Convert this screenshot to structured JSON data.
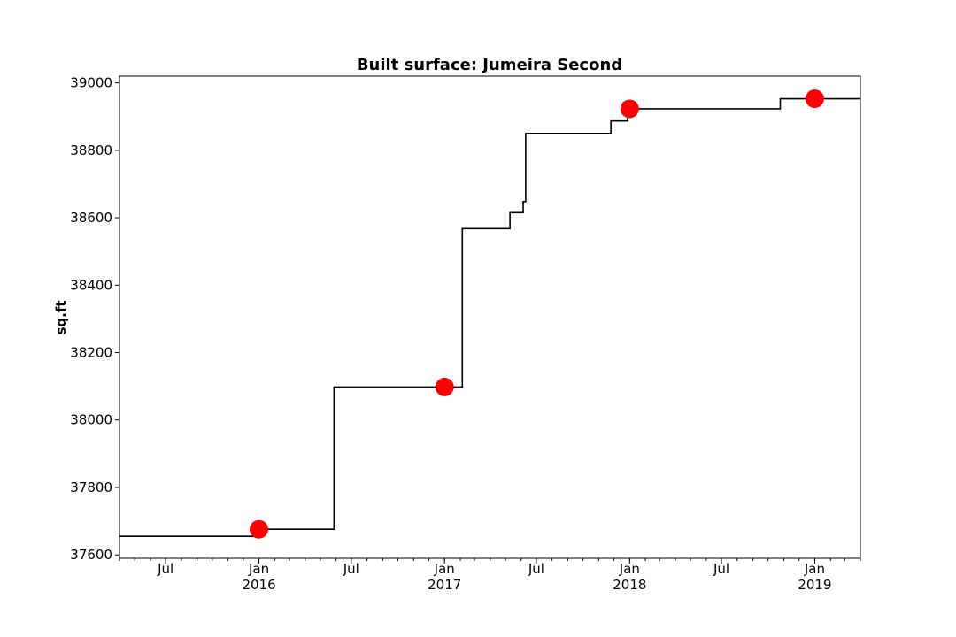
{
  "chart_data": {
    "type": "line",
    "title": "Built surface: Jumeira Second",
    "xlabel": "",
    "ylabel": "sq.ft",
    "x_range": [
      "2015-04-01",
      "2019-04-01"
    ],
    "ylim": [
      37590,
      39020
    ],
    "yticks": [
      37600,
      37800,
      38000,
      38200,
      38400,
      38600,
      38800,
      39000
    ],
    "xticks": [
      {
        "date": "2015-07-01",
        "label": "Jul",
        "sublabel": ""
      },
      {
        "date": "2016-01-01",
        "label": "Jan",
        "sublabel": "2016"
      },
      {
        "date": "2016-07-01",
        "label": "Jul",
        "sublabel": ""
      },
      {
        "date": "2017-01-01",
        "label": "Jan",
        "sublabel": "2017"
      },
      {
        "date": "2017-07-01",
        "label": "Jul",
        "sublabel": ""
      },
      {
        "date": "2018-01-01",
        "label": "Jan",
        "sublabel": "2018"
      },
      {
        "date": "2018-07-01",
        "label": "Jul",
        "sublabel": ""
      },
      {
        "date": "2019-01-01",
        "label": "Jan",
        "sublabel": "2019"
      }
    ],
    "grid": false,
    "series": [
      {
        "style": "step",
        "color": "#000000",
        "points": [
          {
            "x": "2015-04-01",
            "y": 37655
          },
          {
            "x": "2015-12-28",
            "y": 37676
          },
          {
            "x": "2016-05-28",
            "y": 38098
          },
          {
            "x": "2017-02-05",
            "y": 38568
          },
          {
            "x": "2017-05-10",
            "y": 38615
          },
          {
            "x": "2017-06-05",
            "y": 38648
          },
          {
            "x": "2017-06-10",
            "y": 38850
          },
          {
            "x": "2017-11-25",
            "y": 38887
          },
          {
            "x": "2017-12-28",
            "y": 38923
          },
          {
            "x": "2018-10-25",
            "y": 38953
          },
          {
            "x": "2019-04-01",
            "y": 38953
          }
        ]
      },
      {
        "style": "markers",
        "color": "#ff0000",
        "points": [
          {
            "x": "2016-01-01",
            "y": 37676
          },
          {
            "x": "2017-01-01",
            "y": 38098
          },
          {
            "x": "2018-01-01",
            "y": 38923
          },
          {
            "x": "2019-01-01",
            "y": 38953
          }
        ]
      }
    ]
  }
}
